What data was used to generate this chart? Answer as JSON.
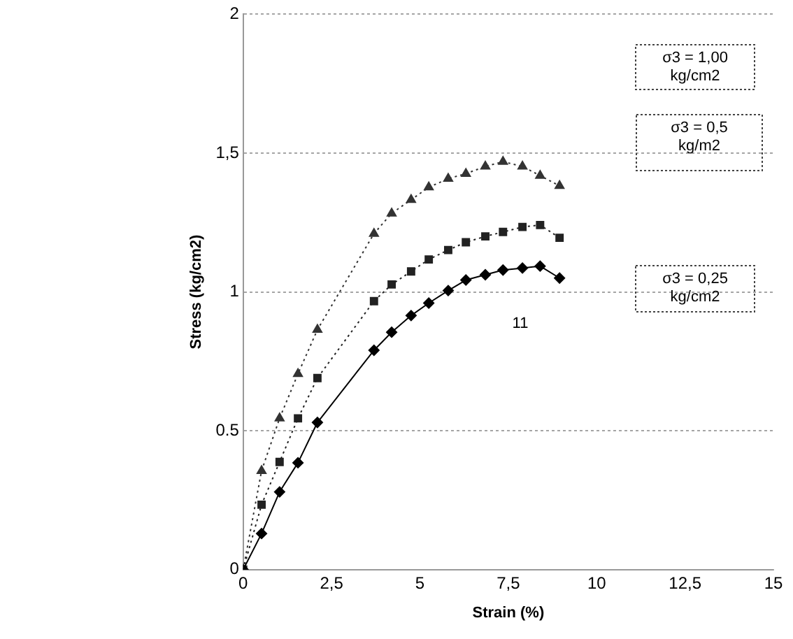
{
  "chart_data": {
    "type": "line",
    "xlabel": "Strain (%)",
    "ylabel": "Stress (kg/cm2)",
    "xlim": [
      0,
      15
    ],
    "xticks": [
      0,
      {
        "value": 2.5,
        "label": "2,5"
      },
      5,
      {
        "value": 7.5,
        "label": "7,5"
      },
      10,
      {
        "value": 12.5,
        "label": "12,5"
      },
      15
    ],
    "ylim": [
      0,
      2
    ],
    "yticks": [
      0,
      {
        "value": 0.5,
        "label": "0.5"
      },
      1,
      {
        "value": 1.5,
        "label": "1,5"
      },
      2
    ],
    "grid": "y",
    "legend": false,
    "annotations": [
      "σ3 = 1,00 kg/cm2",
      "σ3 = 0,5 kg/m2",
      "σ3 = 0,25 kg/cm2",
      "11"
    ],
    "series": [
      {
        "color": "#000000",
        "marker": "diamond",
        "line_style": "solid",
        "x": [
          0,
          0.52,
          1.03,
          1.55,
          2.1,
          3.7,
          4.2,
          4.75,
          5.25,
          5.8,
          6.3,
          6.85,
          7.35,
          7.9,
          8.4,
          8.95
        ],
        "values": [
          0,
          0.13,
          0.28,
          0.385,
          0.53,
          0.79,
          0.855,
          0.915,
          0.96,
          1.005,
          1.043,
          1.062,
          1.079,
          1.086,
          1.093,
          1.05
        ]
      },
      {
        "color": "#222222",
        "marker": "square",
        "line_style": "dotted",
        "x": [
          0,
          0.52,
          1.03,
          1.55,
          2.1,
          3.7,
          4.2,
          4.75,
          5.25,
          5.8,
          6.3,
          6.85,
          7.35,
          7.9,
          8.4,
          8.95
        ],
        "values": [
          0,
          0.234,
          0.388,
          0.545,
          0.69,
          0.967,
          1.027,
          1.074,
          1.117,
          1.151,
          1.179,
          1.2,
          1.216,
          1.234,
          1.241,
          1.195
        ]
      },
      {
        "color": "#333333",
        "marker": "triangle",
        "line_style": "dotted",
        "x": [
          0,
          0.52,
          1.03,
          1.55,
          2.1,
          3.7,
          4.2,
          4.75,
          5.25,
          5.8,
          6.3,
          6.85,
          7.35,
          7.9,
          8.4,
          8.95
        ],
        "values": [
          0,
          0.356,
          0.545,
          0.705,
          0.864,
          1.21,
          1.283,
          1.332,
          1.377,
          1.408,
          1.426,
          1.452,
          1.469,
          1.452,
          1.419,
          1.382
        ]
      }
    ]
  }
}
